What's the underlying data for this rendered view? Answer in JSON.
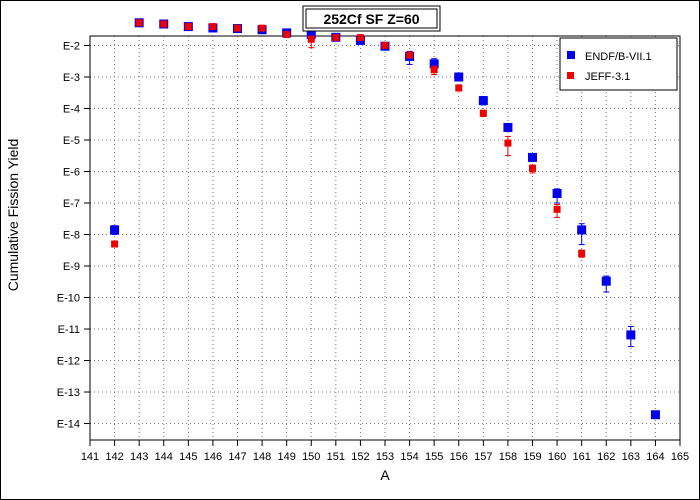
{
  "chart_data": {
    "type": "scatter",
    "title": "252Cf SF Z=60",
    "xlabel": "A",
    "ylabel": "Cumulative Fission Yield",
    "xlim": [
      141,
      165
    ],
    "x_ticks": [
      141,
      142,
      143,
      144,
      145,
      146,
      147,
      148,
      149,
      150,
      151,
      152,
      153,
      154,
      155,
      156,
      157,
      158,
      159,
      160,
      161,
      162,
      163,
      164,
      165
    ],
    "y_scale": "log",
    "ylim": [
      3e-15,
      0.02
    ],
    "y_ticks": [
      {
        "value": 0.01,
        "label": "E-2"
      },
      {
        "value": 0.001,
        "label": "E-3"
      },
      {
        "value": 0.0001,
        "label": "E-4"
      },
      {
        "value": 1e-05,
        "label": "E-5"
      },
      {
        "value": 1e-06,
        "label": "E-6"
      },
      {
        "value": 1e-07,
        "label": "E-7"
      },
      {
        "value": 1e-08,
        "label": "E-8"
      },
      {
        "value": 1e-09,
        "label": "E-9"
      },
      {
        "value": 1e-10,
        "label": "E-10"
      },
      {
        "value": 1e-11,
        "label": "E-11"
      },
      {
        "value": 1e-12,
        "label": "E-12"
      },
      {
        "value": 1e-13,
        "label": "E-13"
      },
      {
        "value": 1e-14,
        "label": "E-14"
      }
    ],
    "grid": true,
    "legend_position": "top-right",
    "series": [
      {
        "name": "ENDF/B-VII.1",
        "color": "#0000ee",
        "marker": "square",
        "points": [
          {
            "x": 142,
            "y": 1.4e-08,
            "lo": 1e-08,
            "hi": 1.9e-08
          },
          {
            "x": 143,
            "y": 0.0525,
            "lo": 0.05,
            "hi": 0.055
          },
          {
            "x": 144,
            "y": 0.048,
            "lo": 0.046,
            "hi": 0.05
          },
          {
            "x": 145,
            "y": 0.0398,
            "lo": 0.038,
            "hi": 0.042
          },
          {
            "x": 146,
            "y": 0.036,
            "lo": 0.034,
            "hi": 0.038
          },
          {
            "x": 147,
            "y": 0.0345,
            "lo": 0.033,
            "hi": 0.036
          },
          {
            "x": 148,
            "y": 0.0316,
            "lo": 0.03,
            "hi": 0.033
          },
          {
            "x": 149,
            "y": 0.0251,
            "lo": 0.024,
            "hi": 0.026
          },
          {
            "x": 150,
            "y": 0.0224,
            "lo": 0.021,
            "hi": 0.024
          },
          {
            "x": 151,
            "y": 0.0182,
            "lo": 0.017,
            "hi": 0.019
          },
          {
            "x": 152,
            "y": 0.0145,
            "lo": 0.012,
            "hi": 0.017
          },
          {
            "x": 153,
            "y": 0.0095,
            "lo": 0.0085,
            "hi": 0.0105
          },
          {
            "x": 154,
            "y": 0.0045,
            "lo": 0.0025,
            "hi": 0.0065
          },
          {
            "x": 155,
            "y": 0.0026,
            "lo": 0.0014,
            "hi": 0.0038
          },
          {
            "x": 156,
            "y": 0.001,
            "lo": 0.0008,
            "hi": 0.0012
          },
          {
            "x": 157,
            "y": 0.000178,
            "lo": 0.00013,
            "hi": 0.00024
          },
          {
            "x": 158,
            "y": 2.5e-05,
            "lo": 1.9e-05,
            "hi": 3.3e-05
          },
          {
            "x": 159,
            "y": 2.8e-06,
            "lo": 2.1e-06,
            "hi": 3.7e-06
          },
          {
            "x": 160,
            "y": 2e-07,
            "lo": 1e-07,
            "hi": 2.8e-07
          },
          {
            "x": 161,
            "y": 1.4e-08,
            "lo": 4.8e-09,
            "hi": 2.2e-08
          },
          {
            "x": 162,
            "y": 3.3e-10,
            "lo": 1.5e-10,
            "hi": 4.8e-10
          },
          {
            "x": 163,
            "y": 6.5e-12,
            "lo": 2.8e-12,
            "hi": 1.2e-11
          },
          {
            "x": 164,
            "y": 1.9e-14,
            "lo": 1.6e-14,
            "hi": 2.2e-14
          }
        ]
      },
      {
        "name": "JEFF-3.1",
        "color": "#ee0000",
        "marker": "square",
        "points": [
          {
            "x": 142,
            "y": 5e-09,
            "lo": 4e-09,
            "hi": 6e-09
          },
          {
            "x": 143,
            "y": 0.0525,
            "lo": 0.05,
            "hi": 0.055
          },
          {
            "x": 144,
            "y": 0.048,
            "lo": 0.046,
            "hi": 0.05
          },
          {
            "x": 145,
            "y": 0.0398,
            "lo": 0.038,
            "hi": 0.042
          },
          {
            "x": 146,
            "y": 0.0398,
            "lo": 0.037,
            "hi": 0.042
          },
          {
            "x": 147,
            "y": 0.0355,
            "lo": 0.033,
            "hi": 0.038
          },
          {
            "x": 148,
            "y": 0.0355,
            "lo": 0.033,
            "hi": 0.038
          },
          {
            "x": 149,
            "y": 0.0224,
            "lo": 0.021,
            "hi": 0.024
          },
          {
            "x": 150,
            "y": 0.0158,
            "lo": 0.0085,
            "hi": 0.02
          },
          {
            "x": 151,
            "y": 0.0178,
            "lo": 0.016,
            "hi": 0.02
          },
          {
            "x": 152,
            "y": 0.0178,
            "lo": 0.015,
            "hi": 0.021
          },
          {
            "x": 153,
            "y": 0.01,
            "lo": 0.009,
            "hi": 0.011
          },
          {
            "x": 154,
            "y": 0.005,
            "lo": 0.004,
            "hi": 0.006
          },
          {
            "x": 155,
            "y": 0.0017,
            "lo": 0.0012,
            "hi": 0.0022
          },
          {
            "x": 156,
            "y": 0.00045,
            "lo": 0.00036,
            "hi": 0.00054
          },
          {
            "x": 157,
            "y": 7.1e-05,
            "lo": 5.6e-05,
            "hi": 8.6e-05
          },
          {
            "x": 158,
            "y": 8e-06,
            "lo": 3.2e-06,
            "hi": 1.3e-05
          },
          {
            "x": 159,
            "y": 1.25e-06,
            "lo": 9e-07,
            "hi": 1.6e-06
          },
          {
            "x": 160,
            "y": 6.3e-08,
            "lo": 3.5e-08,
            "hi": 9e-08
          },
          {
            "x": 161,
            "y": 2.5e-09,
            "lo": 1.9e-09,
            "hi": 3.2e-09
          }
        ]
      }
    ]
  }
}
